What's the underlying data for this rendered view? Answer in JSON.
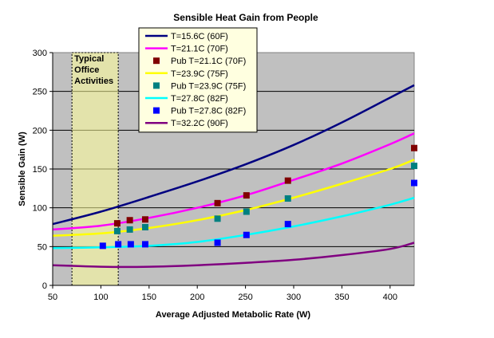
{
  "chart_data": {
    "type": "line",
    "title": "Sensible Heat Gain from People",
    "xlabel": "Average Adjusted Metabolic Rate (W)",
    "ylabel": "Sensible Gain (W)",
    "xlim": [
      50,
      425
    ],
    "ylim": [
      0,
      300
    ],
    "xticks": [
      "50",
      "100",
      "150",
      "200",
      "250",
      "300",
      "350",
      "400"
    ],
    "yticks": [
      "0",
      "50",
      "100",
      "150",
      "200",
      "250",
      "300"
    ],
    "grid": "horizontal",
    "plot_background": "#c0c0c0",
    "legend_position": "top-center",
    "annotation": {
      "lines": [
        "Typical",
        "Office",
        "Activities"
      ],
      "x_range": [
        70,
        118
      ],
      "color": "#ffff99"
    },
    "curves": [
      {
        "name": "T=15.6C (60F)",
        "color": "#000080",
        "x": [
          50,
          100,
          150,
          200,
          250,
          300,
          350,
          400,
          425
        ],
        "y": [
          79,
          95,
          114,
          134,
          156,
          181,
          210,
          242,
          258
        ]
      },
      {
        "name": "T=21.1C (70F)",
        "color": "#ff00ff",
        "x": [
          50,
          100,
          150,
          200,
          250,
          300,
          350,
          400,
          425
        ],
        "y": [
          72,
          77,
          87,
          100,
          116,
          136,
          157,
          182,
          196
        ]
      },
      {
        "name": "T=23.9C (75F)",
        "color": "#ffff00",
        "x": [
          50,
          100,
          150,
          200,
          250,
          300,
          350,
          400,
          425
        ],
        "y": [
          64,
          67,
          74,
          84,
          97,
          113,
          131,
          150,
          162
        ]
      },
      {
        "name": "T=27.8C (82F)",
        "color": "#00ffff",
        "x": [
          50,
          100,
          150,
          200,
          250,
          300,
          350,
          400,
          425
        ],
        "y": [
          48,
          49,
          51,
          56,
          65,
          76,
          89,
          104,
          113
        ]
      },
      {
        "name": "T=32.2C (90F)",
        "color": "#800080",
        "x": [
          50,
          100,
          150,
          200,
          250,
          300,
          350,
          400,
          425
        ],
        "y": [
          26,
          24,
          24,
          26,
          29,
          33,
          39,
          47,
          55
        ]
      }
    ],
    "points": [
      {
        "name": "Pub T=21.1C (70F)",
        "color": "#800000",
        "x": [
          117,
          130,
          146,
          221,
          251,
          294,
          425
        ],
        "y": [
          80,
          84,
          85,
          106,
          116,
          135,
          177
        ]
      },
      {
        "name": "Pub T=23.9C (75F)",
        "color": "#008080",
        "x": [
          117,
          130,
          146,
          221,
          251,
          294,
          425
        ],
        "y": [
          70,
          72,
          75,
          86,
          95,
          112,
          154
        ]
      },
      {
        "name": "Pub T=27.8C (82F)",
        "color": "#0000ff",
        "x": [
          102,
          118,
          131,
          146,
          221,
          251,
          294,
          425
        ],
        "y": [
          51,
          53,
          53,
          53,
          55,
          65,
          79,
          132
        ]
      }
    ],
    "legend_order": [
      "T=15.6C (60F)",
      "T=21.1C (70F)",
      "Pub T=21.1C (70F)",
      "T=23.9C (75F)",
      "Pub T=23.9C (75F)",
      "T=27.8C (82F)",
      "Pub T=27.8C (82F)",
      "T=32.2C (90F)"
    ]
  }
}
